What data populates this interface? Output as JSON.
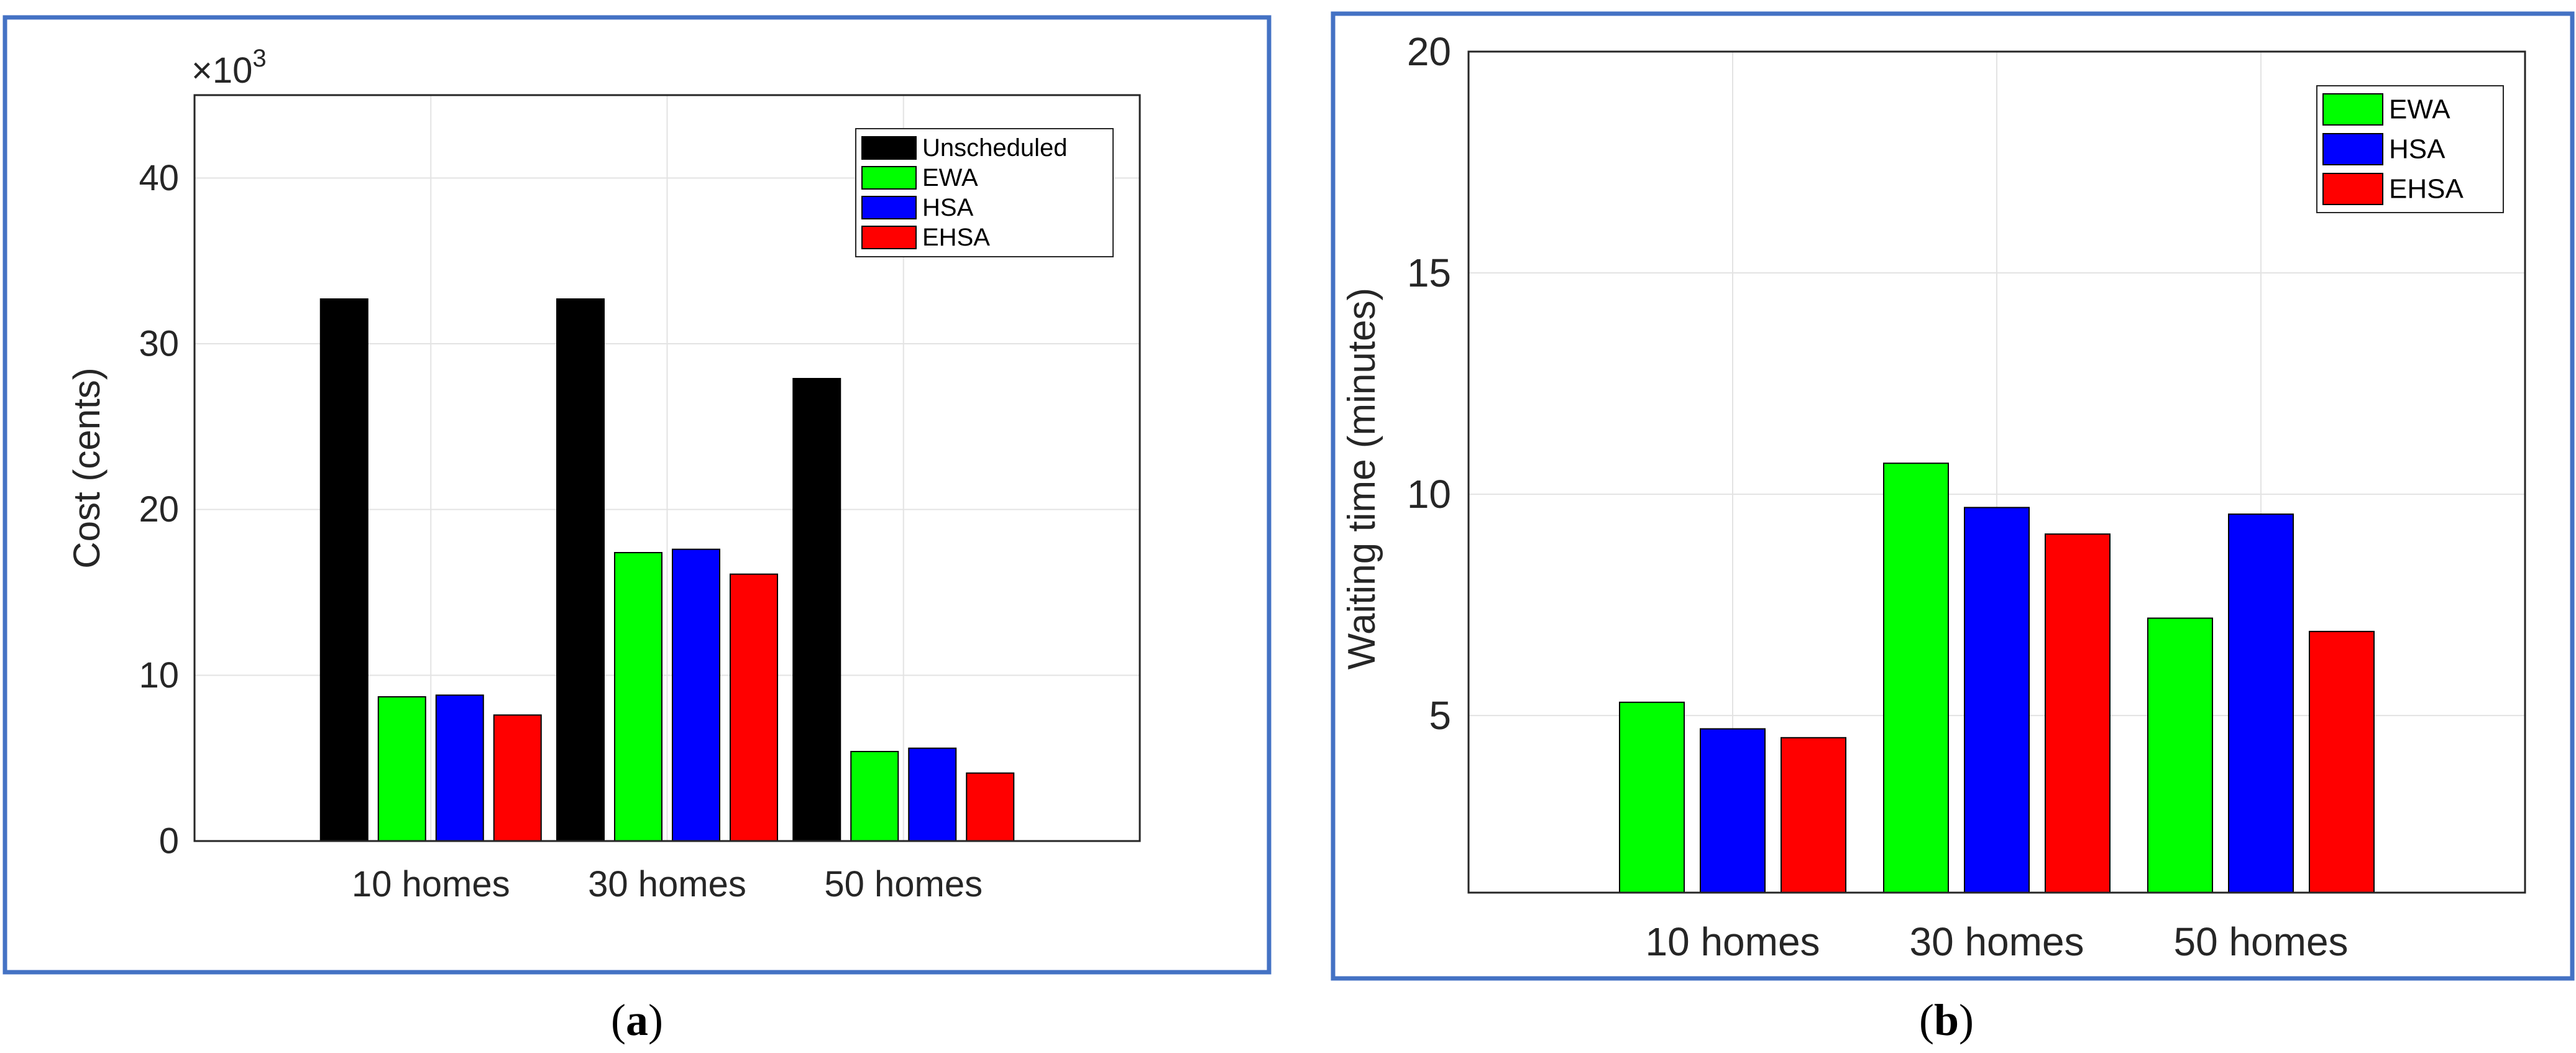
{
  "colors": {
    "frame": "#4472C4",
    "Unscheduled": "#000000",
    "EWA": "#00FF00",
    "HSA": "#0000FF",
    "EHSA": "#FF0000",
    "grid": "#E3E3E3",
    "axis": "#262626"
  },
  "chart_data": [
    {
      "type": "bar",
      "panel_label": "a",
      "title": "",
      "xlabel": "",
      "ylabel": "Cost (cents)",
      "exponent_prefix": "×10",
      "exponent_power": "3",
      "categories": [
        "10 homes",
        "30 homes",
        "50 homes"
      ],
      "ylim": [
        0,
        45
      ],
      "yticks": [
        0,
        10,
        20,
        30,
        40
      ],
      "grid": true,
      "legend_position": "top-right",
      "series": [
        {
          "name": "Unscheduled",
          "values": [
            32.7,
            32.7,
            27.9
          ]
        },
        {
          "name": "EWA",
          "values": [
            8.7,
            17.4,
            5.4
          ]
        },
        {
          "name": "HSA",
          "values": [
            8.8,
            17.6,
            5.6
          ]
        },
        {
          "name": "EHSA",
          "values": [
            7.6,
            16.1,
            4.1
          ]
        }
      ]
    },
    {
      "type": "bar",
      "panel_label": "b",
      "title": "",
      "xlabel": "",
      "ylabel": "Waiting time (minutes)",
      "categories": [
        "10 homes",
        "30 homes",
        "50 homes"
      ],
      "ylim": [
        1,
        20
      ],
      "yticks": [
        5,
        10,
        15,
        20
      ],
      "grid": true,
      "legend_position": "top-right",
      "series": [
        {
          "name": "EWA",
          "values": [
            5.3,
            10.7,
            7.2
          ]
        },
        {
          "name": "HSA",
          "values": [
            4.7,
            9.7,
            9.55
          ]
        },
        {
          "name": "EHSA",
          "values": [
            4.5,
            9.1,
            6.9
          ]
        }
      ]
    }
  ]
}
